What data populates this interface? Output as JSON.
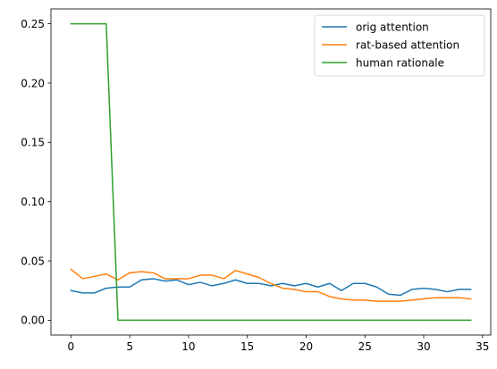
{
  "chart_data": {
    "type": "line",
    "title": "",
    "xlabel": "",
    "ylabel": "",
    "xlim": [
      -1.7,
      35.7
    ],
    "ylim": [
      -0.0125,
      0.2625
    ],
    "x_ticks": [
      0,
      5,
      10,
      15,
      20,
      25,
      30,
      35
    ],
    "x_tick_labels": [
      "0",
      "5",
      "10",
      "15",
      "20",
      "25",
      "30",
      "35"
    ],
    "y_ticks": [
      0.0,
      0.05,
      0.1,
      0.15,
      0.2,
      0.25
    ],
    "y_tick_labels": [
      "0.00",
      "0.05",
      "0.10",
      "0.15",
      "0.20",
      "0.25"
    ],
    "grid": false,
    "legend_position": "top-right",
    "x": [
      0,
      1,
      2,
      3,
      4,
      5,
      6,
      7,
      8,
      9,
      10,
      11,
      12,
      13,
      14,
      15,
      16,
      17,
      18,
      19,
      20,
      21,
      22,
      23,
      24,
      25,
      26,
      27,
      28,
      29,
      30,
      31,
      32,
      33,
      34
    ],
    "series": [
      {
        "name": "orig attention",
        "color": "#1f77b4",
        "values": [
          0.025,
          0.023,
          0.023,
          0.027,
          0.028,
          0.028,
          0.034,
          0.035,
          0.033,
          0.034,
          0.03,
          0.032,
          0.029,
          0.031,
          0.034,
          0.031,
          0.031,
          0.029,
          0.031,
          0.029,
          0.031,
          0.028,
          0.031,
          0.025,
          0.031,
          0.031,
          0.028,
          0.022,
          0.021,
          0.026,
          0.027,
          0.026,
          0.024,
          0.026,
          0.026
        ]
      },
      {
        "name": "rat-based attention",
        "color": "#ff7f0e",
        "values": [
          0.043,
          0.035,
          0.037,
          0.039,
          0.034,
          0.04,
          0.041,
          0.04,
          0.035,
          0.035,
          0.035,
          0.038,
          0.038,
          0.035,
          0.042,
          0.039,
          0.036,
          0.031,
          0.027,
          0.026,
          0.024,
          0.024,
          0.02,
          0.018,
          0.017,
          0.017,
          0.016,
          0.016,
          0.016,
          0.017,
          0.018,
          0.019,
          0.019,
          0.019,
          0.018
        ]
      },
      {
        "name": "human rationale",
        "color": "#2ca02c",
        "values": [
          0.25,
          0.25,
          0.25,
          0.25,
          0.0,
          0.0,
          0.0,
          0.0,
          0.0,
          0.0,
          0.0,
          0.0,
          0.0,
          0.0,
          0.0,
          0.0,
          0.0,
          0.0,
          0.0,
          0.0,
          0.0,
          0.0,
          0.0,
          0.0,
          0.0,
          0.0,
          0.0,
          0.0,
          0.0,
          0.0,
          0.0,
          0.0,
          0.0,
          0.0,
          0.0
        ]
      }
    ]
  }
}
